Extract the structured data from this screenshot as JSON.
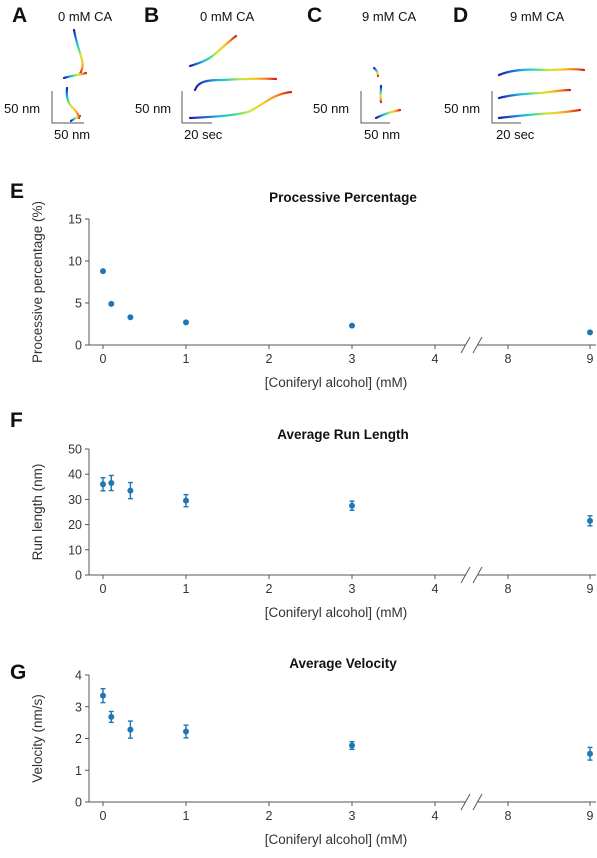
{
  "panels": {
    "A": {
      "label": "A",
      "title": "0 mM CA",
      "scale_y": "50 nm",
      "scale_x": "50 nm"
    },
    "B": {
      "label": "B",
      "title": "0 mM CA",
      "scale_y": "50 nm",
      "scale_x": "20 sec"
    },
    "C": {
      "label": "C",
      "title": "9 mM CA",
      "scale_y": "50 nm",
      "scale_x": "50 nm"
    },
    "D": {
      "label": "D",
      "title": "9 mM CA",
      "scale_y": "50 nm",
      "scale_x": "20 sec"
    }
  },
  "trace_colors": [
    "#1a1a9e",
    "#1e5fd8",
    "#19b5e6",
    "#3fd9a0",
    "#c8e63c",
    "#f5d020",
    "#f58a1e",
    "#d7191c"
  ],
  "marker_color": "#1f77b4",
  "chart_data": [
    {
      "label": "E",
      "type": "scatter",
      "title": "Processive Percentage",
      "xlabel": "[Coniferyl alcohol] (mM)",
      "ylabel": "Processive percentage (%)",
      "x_ticks": [
        "0",
        "1",
        "2",
        "3",
        "4",
        "8",
        "9"
      ],
      "y_ticks": [
        "0",
        "5",
        "10",
        "15"
      ],
      "ylim": [
        0,
        15
      ],
      "axis_break": "between 4 and 8",
      "x": [
        0,
        0.1,
        0.33,
        1,
        3,
        9
      ],
      "y": [
        8.8,
        4.9,
        3.3,
        2.7,
        2.3,
        1.5
      ]
    },
    {
      "label": "F",
      "type": "scatter",
      "title": "Average Run Length",
      "xlabel": "[Coniferyl alcohol] (mM)",
      "ylabel": "Run length (nm)",
      "x_ticks": [
        "0",
        "1",
        "2",
        "3",
        "4",
        "8",
        "9"
      ],
      "y_ticks": [
        "0",
        "10",
        "20",
        "30",
        "40",
        "50"
      ],
      "ylim": [
        0,
        50
      ],
      "axis_break": "between 4 and 8",
      "x": [
        0,
        0.1,
        0.33,
        1,
        3,
        9
      ],
      "y": [
        36,
        36.5,
        33.5,
        29.5,
        27.5,
        21.5
      ],
      "error": [
        2.6,
        3.0,
        3.2,
        2.4,
        1.8,
        2.0
      ]
    },
    {
      "label": "G",
      "type": "scatter",
      "title": "Average Velocity",
      "xlabel": "[Coniferyl alcohol] (mM)",
      "ylabel": "Velocity (nm/s)",
      "x_ticks": [
        "0",
        "1",
        "2",
        "3",
        "4",
        "8",
        "9"
      ],
      "y_ticks": [
        "0",
        "1",
        "2",
        "3",
        "4"
      ],
      "ylim": [
        0,
        4
      ],
      "axis_break": "between 4 and 8",
      "x": [
        0,
        0.1,
        0.33,
        1,
        3,
        9
      ],
      "y": [
        3.35,
        2.68,
        2.28,
        2.22,
        1.78,
        1.52
      ],
      "error": [
        0.22,
        0.17,
        0.27,
        0.2,
        0.12,
        0.2
      ]
    }
  ]
}
